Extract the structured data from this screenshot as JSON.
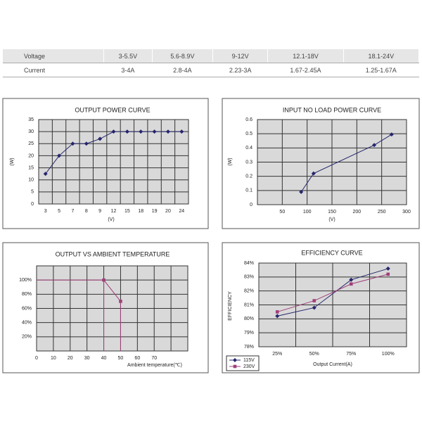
{
  "table": {
    "rows": [
      [
        "Voltage",
        "3-5.5V",
        "5.6-8.9V",
        "9-12V",
        "12.1-18V",
        "18.1-24V"
      ],
      [
        "Current",
        "3-4A",
        "2.8-4A",
        "2.23-3A",
        "1.67-2.45A",
        "1.25-1.67A"
      ]
    ]
  },
  "chart_data": [
    {
      "type": "line",
      "title": "OUTPUT POWER CURVE",
      "ylabel": "(W)",
      "xlabel": "(V)",
      "categories": [
        "3",
        "5",
        "7",
        "8",
        "9",
        "12",
        "15",
        "18",
        "19",
        "20",
        "24"
      ],
      "values": [
        12.5,
        20,
        25,
        25,
        27,
        30,
        30,
        30,
        30,
        30,
        30
      ],
      "color": "#26266e",
      "marker": "diamond",
      "ylim": [
        0,
        35
      ],
      "yticks": [
        0,
        5,
        10,
        15,
        20,
        25,
        30,
        35
      ],
      "grid": true
    },
    {
      "type": "line",
      "title": "INPUT NO LOAD POWER CURVE",
      "ylabel": "(W)",
      "xlabel": "(V)",
      "x": [
        88,
        113,
        235,
        270
      ],
      "values": [
        0.09,
        0.22,
        0.42,
        0.495
      ],
      "color": "#26266e",
      "marker": "diamond",
      "xlim": [
        0,
        300
      ],
      "xticks": [
        50,
        100,
        150,
        200,
        250,
        300
      ],
      "ylim": [
        0,
        0.6
      ],
      "yticks": [
        0,
        0.1,
        0.2,
        0.3,
        0.4,
        0.5,
        0.6
      ],
      "grid": true
    },
    {
      "type": "line",
      "title": "OUTPUT VS AMBIENT TEMPERATURE",
      "xlabel": "Ambient temperature(℃)",
      "x": [
        0,
        40,
        50
      ],
      "values": [
        100,
        100,
        70
      ],
      "color": "#a0407a",
      "marker": "square",
      "droplines": true,
      "xlim": [
        0,
        90
      ],
      "xticks": [
        0,
        10,
        20,
        30,
        40,
        50,
        60,
        70
      ],
      "ylim": [
        0,
        120
      ],
      "yticks": [
        {
          "value": 20,
          "label": "20%"
        },
        {
          "value": 40,
          "label": "40%"
        },
        {
          "value": 60,
          "label": "60%"
        },
        {
          "value": 80,
          "label": "80%"
        },
        {
          "value": 100,
          "label": "100%"
        }
      ],
      "grid": true
    },
    {
      "type": "line",
      "title": "EFFICIENCY CURVE",
      "ylabel": "EFFICIENCY",
      "xlabel": "Output Current(A)",
      "categories": [
        "25%",
        "50%",
        "75%",
        "100%"
      ],
      "series": [
        {
          "name": "115V",
          "color": "#26266e",
          "marker": "diamond",
          "values": [
            80.2,
            80.8,
            82.8,
            83.6
          ]
        },
        {
          "name": "230V",
          "color": "#a0407a",
          "marker": "square",
          "values": [
            80.5,
            81.3,
            82.5,
            83.2
          ]
        }
      ],
      "ylim": [
        78,
        84
      ],
      "yticks": [
        {
          "value": 78,
          "label": "78%"
        },
        {
          "value": 79,
          "label": "79%"
        },
        {
          "value": 80,
          "label": "80%"
        },
        {
          "value": 81,
          "label": "81%"
        },
        {
          "value": 82,
          "label": "82%"
        },
        {
          "value": 83,
          "label": "83%"
        },
        {
          "value": 84,
          "label": "84%"
        }
      ],
      "grid": true,
      "legend": "lower left"
    }
  ]
}
